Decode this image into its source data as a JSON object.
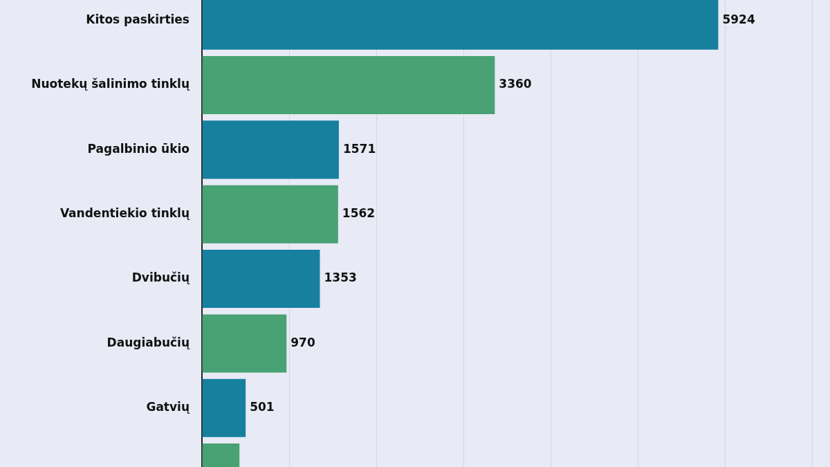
{
  "chart_data": {
    "type": "bar",
    "orientation": "horizontal",
    "categories": [
      "Kitos paskirties",
      "Nuotekų šalinimo tinklų",
      "Pagalbinio ūkio",
      "Vandentiekio tinklų",
      "Dvibučių",
      "Daugiabučių",
      "Gatvių",
      null
    ],
    "values": [
      5924,
      3360,
      1571,
      1562,
      1353,
      970,
      501,
      430
    ],
    "value_labels": [
      "5924",
      "3360",
      "1571",
      "1562",
      "1353",
      "970",
      "501",
      null
    ],
    "colors": [
      "#17809f",
      "#48a274",
      "#17809f",
      "#48a274",
      "#17809f",
      "#48a274",
      "#17809f",
      "#48a274"
    ],
    "xticks": [
      {
        "value": 0,
        "label": null
      },
      {
        "value": 1000,
        "label": null
      },
      {
        "value": 2000,
        "label": null
      },
      {
        "value": 3000,
        "label": null
      },
      {
        "value": 4000,
        "label": null
      },
      {
        "value": 5000,
        "label": null
      },
      {
        "value": 6000,
        "label": null
      },
      {
        "value": 7000,
        "label": null
      }
    ],
    "grid": "x",
    "tick_labels": "y"
  }
}
